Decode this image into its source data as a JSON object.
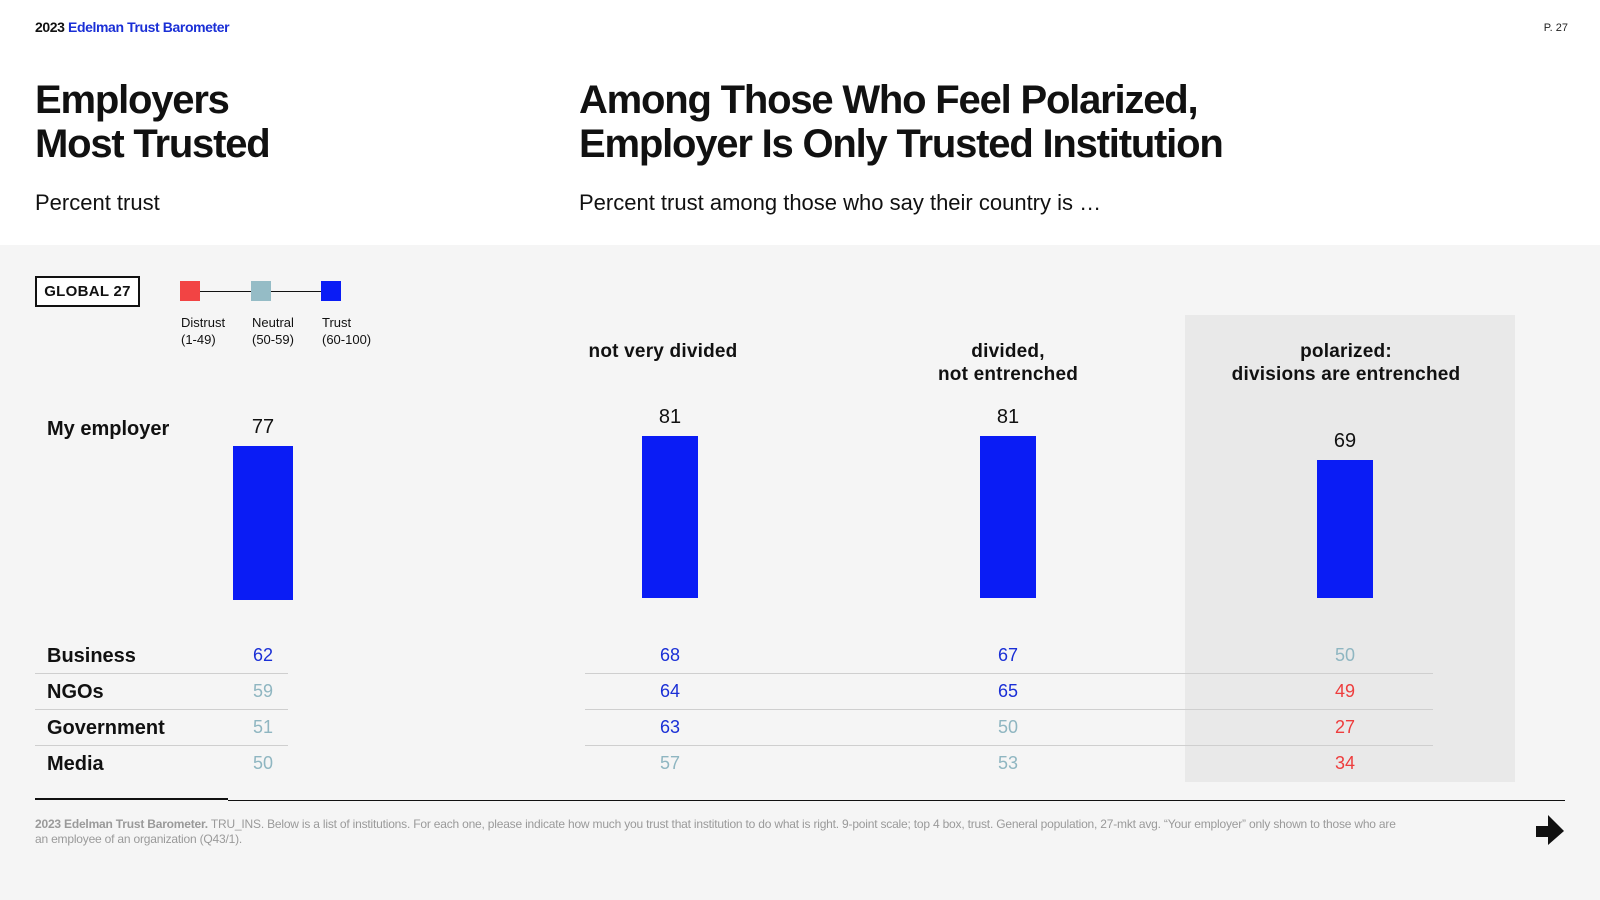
{
  "header": {
    "brand_year": "2023",
    "brand_name": "Edelman Trust Barometer",
    "page": "P. 27"
  },
  "left": {
    "title_line1": "Employers",
    "title_line2": "Most Trusted",
    "subtitle": "Percent trust"
  },
  "right": {
    "title_line1": "Among Those Who Feel Polarized,",
    "title_line2": "Employer Is Only Trusted Institution",
    "subtitle": "Percent trust among those who say their country is …"
  },
  "global_label": "GLOBAL 27",
  "legend": [
    {
      "label": "Distrust",
      "range": "(1-49)",
      "color": "#f24444"
    },
    {
      "label": "Neutral",
      "range": "(50-59)",
      "color": "#95bcc6"
    },
    {
      "label": "Trust",
      "range": "(60-100)",
      "color": "#0a1cf5"
    }
  ],
  "colors": {
    "trust": "#0a1cf5",
    "trust_text": "#1a2fd6",
    "neutral": "#8fb6c1",
    "distrust": "#ee3d3d",
    "highlight_bg": "#e9e9e9"
  },
  "chart_data": {
    "type": "bar",
    "title": "Among Those Who Feel Polarized, Employer Is Only Trusted Institution",
    "ylabel": "Percent trust",
    "ylim": [
      0,
      100
    ],
    "bar_row": "My employer",
    "groups": [
      {
        "key": "global",
        "heading": [
          "GLOBAL 27"
        ]
      },
      {
        "key": "not_very_divided",
        "heading": [
          "not very divided"
        ]
      },
      {
        "key": "divided",
        "heading": [
          "divided,",
          "not entrenched"
        ]
      },
      {
        "key": "polarized",
        "heading": [
          "polarized:",
          "divisions are entrenched"
        ]
      }
    ],
    "rows": [
      {
        "label": "My employer",
        "values": [
          77,
          81,
          81,
          69
        ]
      },
      {
        "label": "Business",
        "values": [
          62,
          68,
          67,
          50
        ]
      },
      {
        "label": "NGOs",
        "values": [
          59,
          64,
          65,
          49
        ]
      },
      {
        "label": "Government",
        "values": [
          51,
          63,
          50,
          27
        ]
      },
      {
        "label": "Media",
        "values": [
          50,
          57,
          53,
          34
        ]
      }
    ]
  },
  "footnote": {
    "source": "2023 Edelman Trust Barometer.",
    "text": "TRU_INS. Below is a list of institutions. For each one, please indicate how much you trust that institution to do what is right. 9-point scale; top 4 box, trust. General population, 27-mkt avg. “Your employer” only shown to those who are an employee of an organization (Q43/1)."
  }
}
